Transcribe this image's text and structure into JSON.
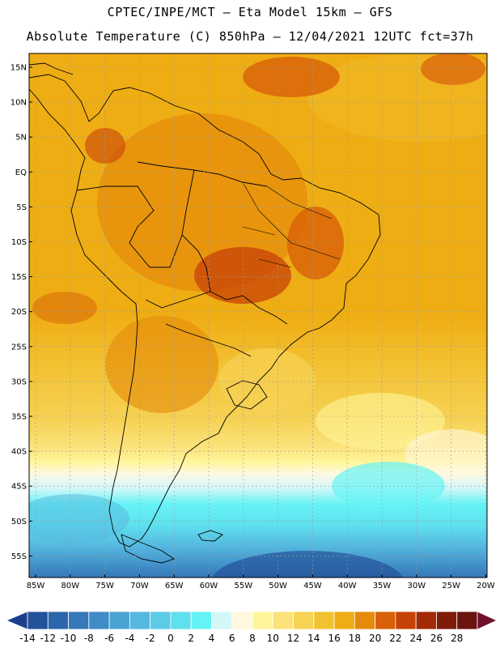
{
  "header": {
    "line1": "CPTEC/INPE/MCT —  Eta Model 15km — GFS",
    "line2": "Absolute Temperature (C) 850hPa — 12/04/2021 12UTC fct=37h"
  },
  "lat_labels": [
    "15N",
    "10N",
    "5N",
    "EQ",
    "5S",
    "10S",
    "15S",
    "20S",
    "25S",
    "30S",
    "35S",
    "40S",
    "45S",
    "50S",
    "55S"
  ],
  "lon_labels": [
    "85W",
    "80W",
    "75W",
    "70W",
    "65W",
    "60W",
    "55W",
    "50W",
    "45W",
    "40W",
    "35W",
    "30W",
    "25W",
    "20W"
  ],
  "colorbar": {
    "labels": [
      "-14",
      "-12",
      "-10",
      "-8",
      "-6",
      "-4",
      "-2",
      "0",
      "2",
      "4",
      "6",
      "8",
      "10",
      "12",
      "14",
      "16",
      "18",
      "20",
      "22",
      "24",
      "26",
      "28"
    ],
    "colors": [
      "#1c3f8c",
      "#245299",
      "#2c66ac",
      "#3678b8",
      "#3f8cc6",
      "#4aa3d2",
      "#55b8df",
      "#5ccbe6",
      "#5fe0ee",
      "#66f3f5",
      "#d3f7f9",
      "#fff8df",
      "#fff59a",
      "#fbe27a",
      "#f6d255",
      "#f3c233",
      "#efad14",
      "#e58a0a",
      "#d86008",
      "#c74207",
      "#a22a06",
      "#7f1c08",
      "#6b1410",
      "#70102d"
    ]
  },
  "colors": {
    "land_outline": "#000000",
    "grid": "#9a9a9a"
  }
}
